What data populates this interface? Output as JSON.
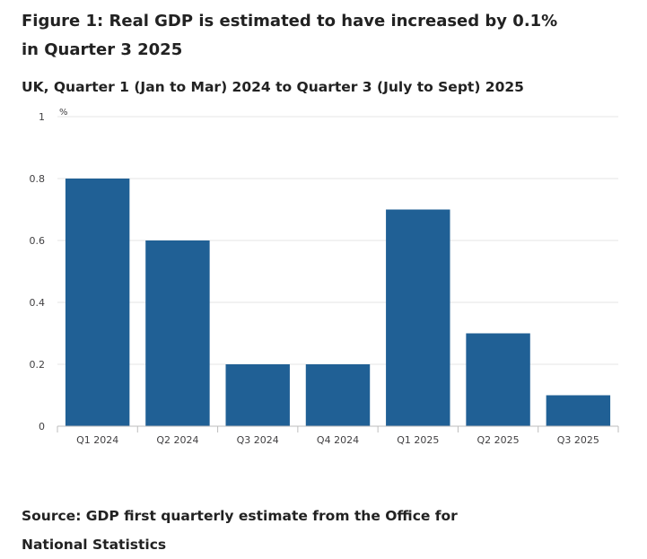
{
  "chart_data": {
    "type": "bar",
    "title": "Figure 1: Real GDP is estimated to have increased by 0.1% in Quarter 3 2025",
    "subtitle": "UK, Quarter 1 (Jan to Mar) 2024 to Quarter 3 (July to Sept) 2025",
    "source": "Source: GDP first quarterly estimate from the Office for National Statistics",
    "unit_label": "%",
    "xlabel": "",
    "ylabel": "%",
    "ylim": [
      0,
      1
    ],
    "yticks": [
      0,
      0.2,
      0.4,
      0.6,
      0.8,
      1
    ],
    "ytick_labels": [
      "0",
      "0.2",
      "0.4",
      "0.6",
      "0.8",
      "1"
    ],
    "grid": true,
    "legend": "none",
    "bar_color": "#206095",
    "categories": [
      "Q1 2024",
      "Q2 2024",
      "Q3 2024",
      "Q4 2024",
      "Q1 2025",
      "Q2 2025",
      "Q3 2025"
    ],
    "values": [
      0.8,
      0.6,
      0.2,
      0.2,
      0.7,
      0.3,
      0.1
    ]
  }
}
